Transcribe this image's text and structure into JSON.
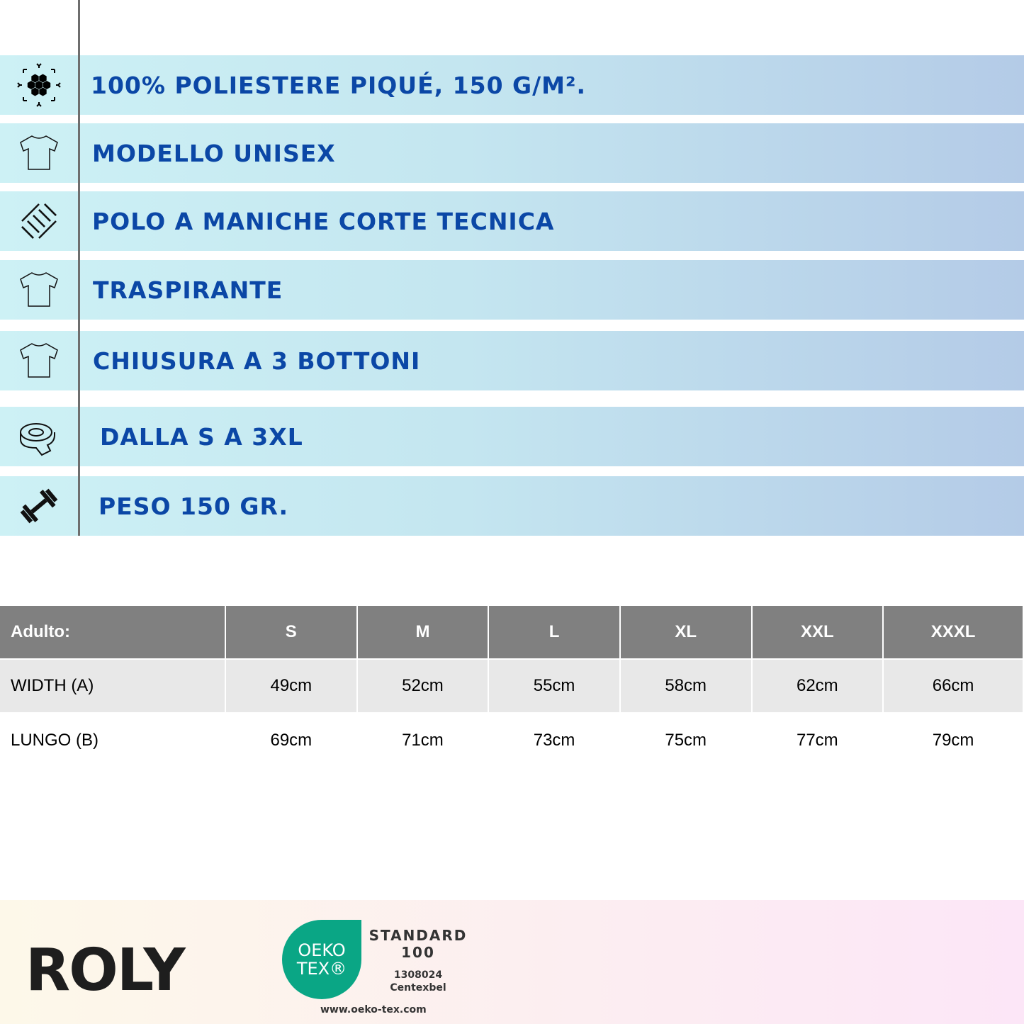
{
  "features": [
    {
      "icon": "fabric-hexagon-icon",
      "label": "100% Poliestere Piqué, 150 g/m²."
    },
    {
      "icon": "tshirt-icon",
      "label": "Modello Unisex"
    },
    {
      "icon": "weave-pattern-icon",
      "label": "Polo a maniche corte tecnica"
    },
    {
      "icon": "tshirt-icon",
      "label": "Traspirante"
    },
    {
      "icon": "tshirt-icon",
      "label": "Chiusura a 3 bottoni"
    },
    {
      "icon": "measuring-tape-icon",
      "label": "Dalla S a 3XL"
    },
    {
      "icon": "dumbbell-icon",
      "label": "Peso 150 gr."
    }
  ],
  "size_table": {
    "headers": [
      "Adulto:",
      "S",
      "M",
      "L",
      "XL",
      "XXL",
      "XXXL"
    ],
    "rows": [
      [
        "WIDTH (A)",
        "49cm",
        "52cm",
        "55cm",
        "58cm",
        "62cm",
        "66cm"
      ],
      [
        "LUNGO (B)",
        "69cm",
        "71cm",
        "73cm",
        "75cm",
        "77cm",
        "79cm"
      ]
    ]
  },
  "footer": {
    "brand": "ROLY",
    "oeko_line1": "OEKO",
    "oeko_line2": "TEX®",
    "standard": "STANDARD",
    "standard_num": "100",
    "cert_number": "1308024",
    "institute": "Centexbel",
    "url": "www.oeko-tex.com"
  },
  "colors": {
    "feature_text": "#0b47a6",
    "header_bg": "#808080",
    "oeko_green": "#0aa685"
  }
}
